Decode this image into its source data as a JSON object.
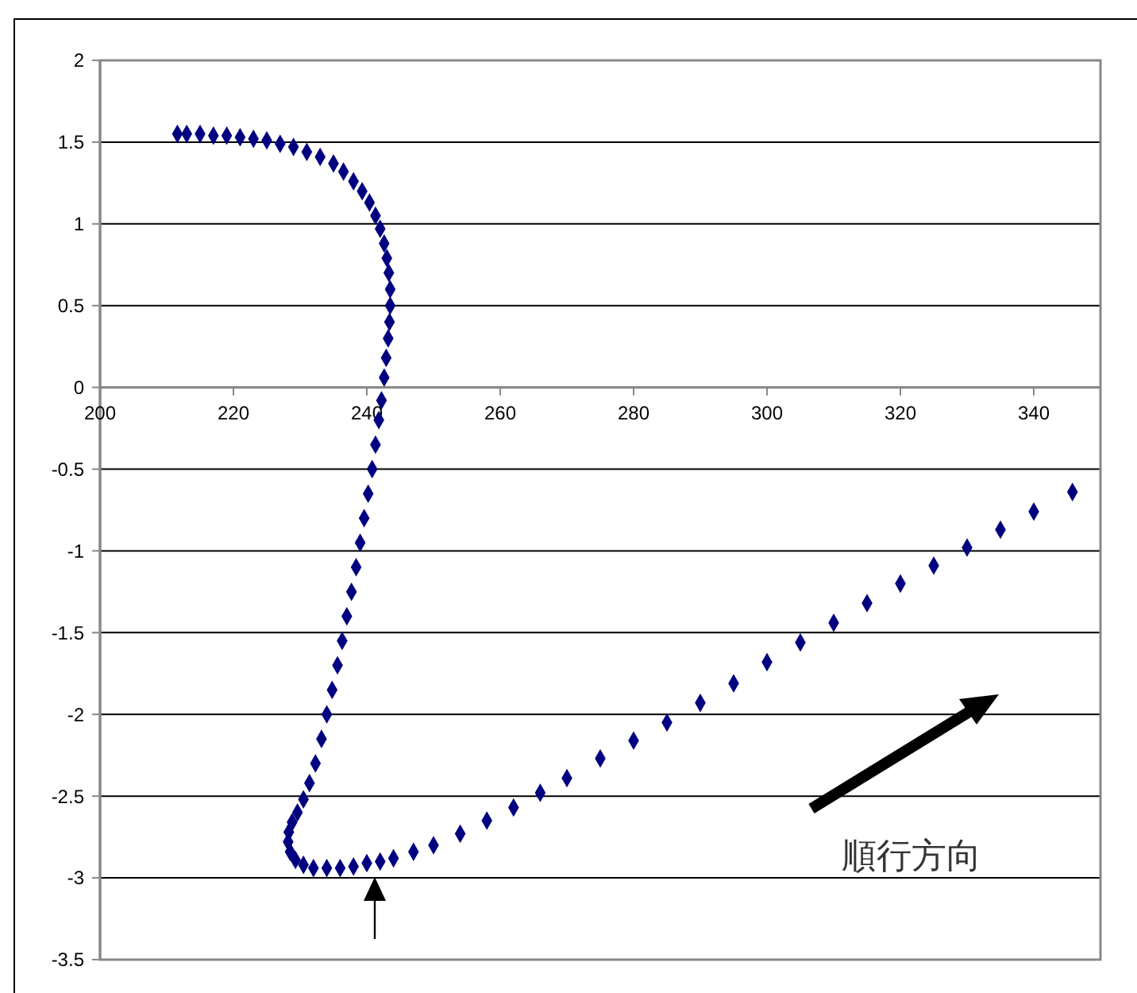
{
  "chart_data": {
    "type": "scatter",
    "marker": "diamond",
    "grid": "y",
    "xlim": [
      200,
      350
    ],
    "xticks": [
      200,
      220,
      240,
      260,
      280,
      300,
      320,
      340
    ],
    "ylim": [
      -3.5,
      2
    ],
    "yticks": [
      -3.5,
      -3,
      -2.5,
      -2,
      -1.5,
      -1,
      -0.5,
      0,
      0.5,
      1,
      1.5,
      2
    ],
    "annotations": [
      "順行方向"
    ],
    "series": [
      {
        "color": "#000080",
        "x": [
          211.6,
          213,
          215,
          217,
          219,
          221,
          223,
          225,
          227,
          229,
          231,
          233,
          235,
          236.5,
          238,
          239.3,
          240.4,
          241.3,
          242,
          242.6,
          243,
          243.3,
          243.5,
          243.5,
          243.4,
          243.2,
          242.9,
          242.6,
          242.2,
          241.8,
          241.3,
          240.8,
          240.2,
          239.6,
          239,
          238.4,
          237.7,
          237,
          236.3,
          235.6,
          234.8,
          234,
          233.2,
          232.3,
          231.4,
          230.5,
          229.6,
          228.8,
          228.3,
          228.2,
          228.5,
          229.3,
          230.5,
          232,
          234,
          236,
          238,
          240,
          242,
          244,
          247,
          250,
          254,
          258,
          262,
          266,
          270,
          275,
          280,
          285,
          290,
          295,
          300,
          305,
          310,
          315,
          320,
          325,
          330,
          335,
          340,
          345.8
        ],
        "values": [
          1.55,
          1.55,
          1.55,
          1.54,
          1.54,
          1.53,
          1.52,
          1.51,
          1.49,
          1.47,
          1.44,
          1.41,
          1.37,
          1.32,
          1.26,
          1.2,
          1.13,
          1.05,
          0.97,
          0.88,
          0.79,
          0.7,
          0.6,
          0.5,
          0.4,
          0.3,
          0.18,
          0.06,
          -0.08,
          -0.2,
          -0.35,
          -0.5,
          -0.65,
          -0.8,
          -0.95,
          -1.1,
          -1.25,
          -1.4,
          -1.55,
          -1.7,
          -1.85,
          -2,
          -2.15,
          -2.3,
          -2.42,
          -2.52,
          -2.6,
          -2.66,
          -2.72,
          -2.78,
          -2.84,
          -2.89,
          -2.92,
          -2.94,
          -2.94,
          -2.94,
          -2.93,
          -2.91,
          -2.9,
          -2.88,
          -2.84,
          -2.8,
          -2.73,
          -2.65,
          -2.57,
          -2.48,
          -2.39,
          -2.27,
          -2.16,
          -2.05,
          -1.93,
          -1.81,
          -1.68,
          -1.56,
          -1.44,
          -1.32,
          -1.2,
          -1.09,
          -0.98,
          -0.87,
          -0.76,
          -0.64
        ]
      }
    ]
  }
}
